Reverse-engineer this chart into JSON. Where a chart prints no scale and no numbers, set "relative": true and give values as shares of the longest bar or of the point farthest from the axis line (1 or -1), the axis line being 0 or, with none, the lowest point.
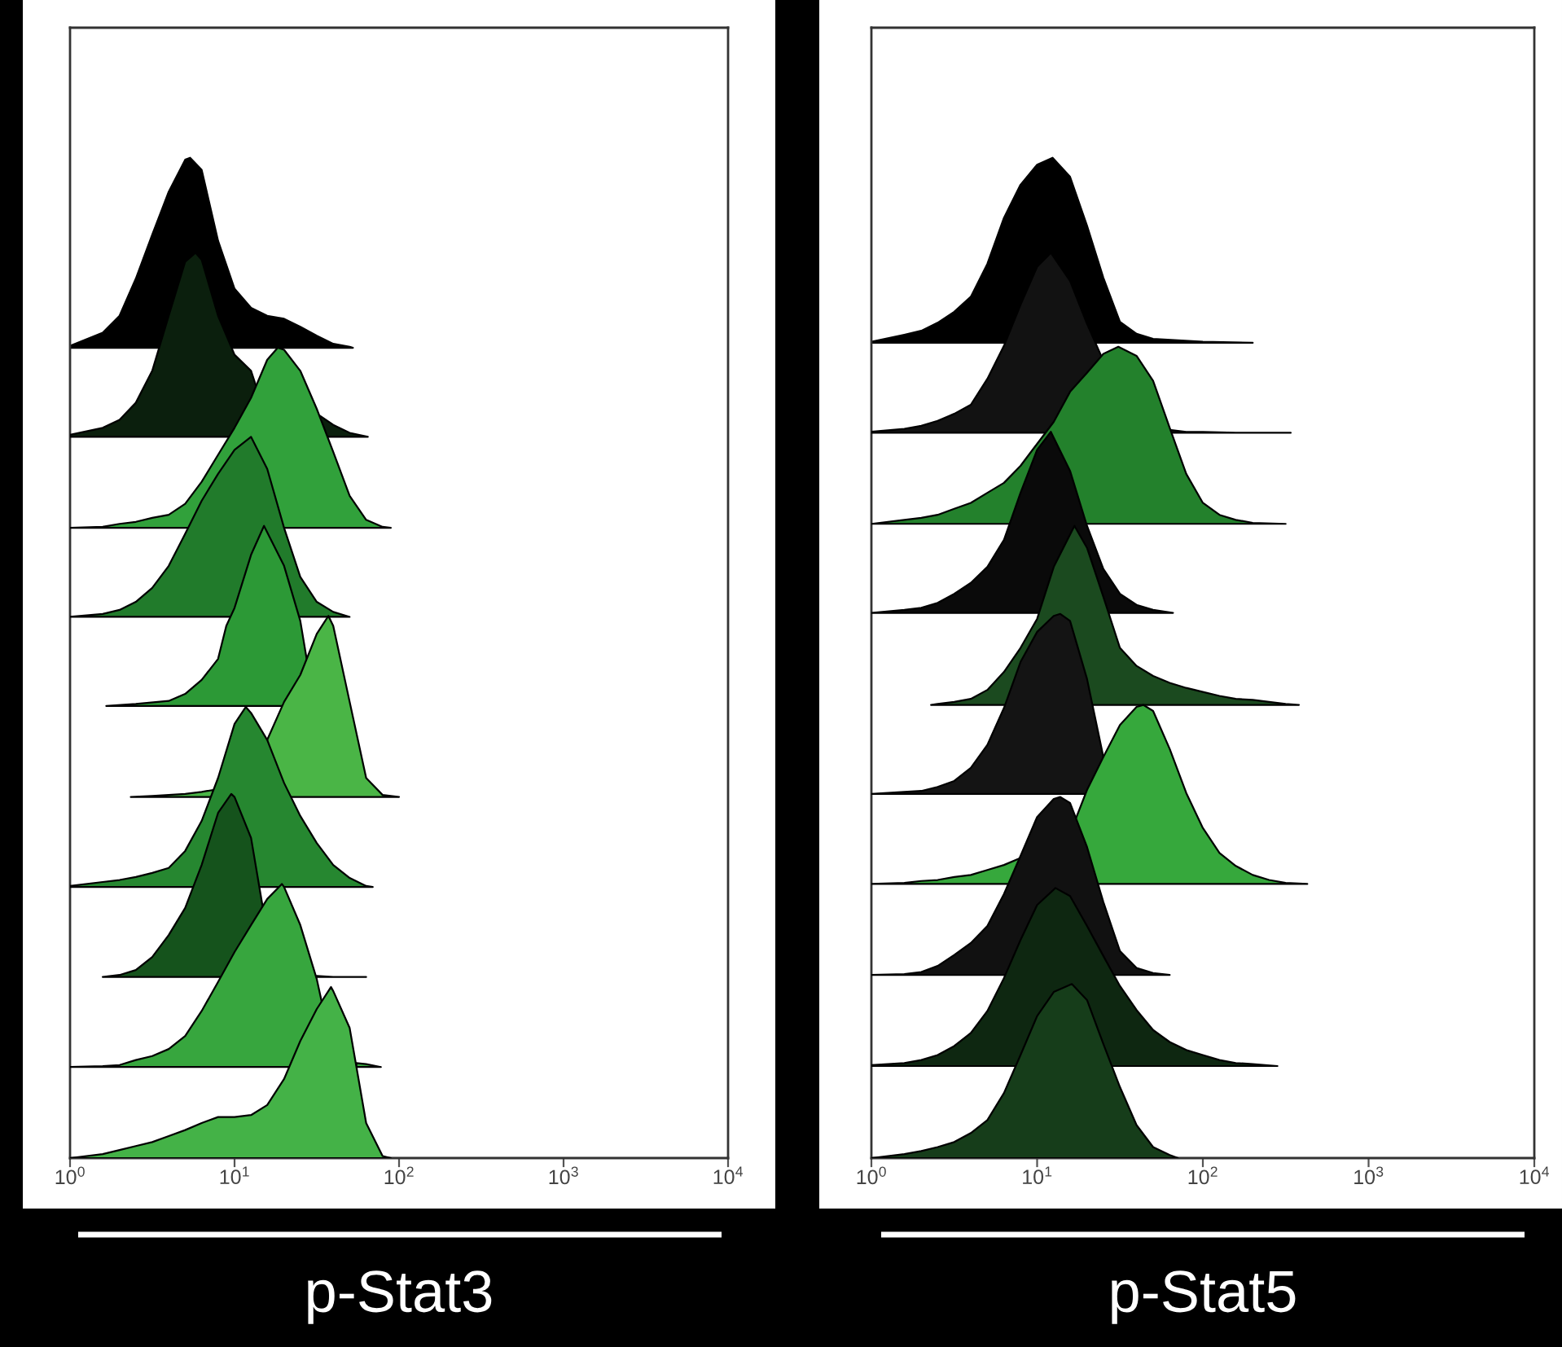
{
  "chart_data": [
    {
      "type": "area",
      "relative": true,
      "log": "x",
      "xlim": [
        1,
        10000
      ],
      "xticks": [
        {
          "value": 1,
          "label": "10$^{0}$"
        },
        {
          "value": 10,
          "label": "10$^{1}$"
        },
        {
          "value": 100,
          "label": "10$^{2}$"
        },
        {
          "value": 1000,
          "label": "10$^{3}$"
        },
        {
          "value": 10000,
          "label": "10$^{4}$"
        }
      ],
      "tick_labels": "x",
      "xlabel": "p-Stat3",
      "series": [
        {
          "color": "#000000",
          "x": [
            1,
            1.58,
            2,
            2.51,
            3.16,
            3.98,
            5.01,
            5.37,
            6.31,
            7.94,
            10,
            12.6,
            15.8,
            20,
            25.1,
            31.6,
            39.8,
            50.1,
            52.5
          ],
          "values": [
            0.812,
            0.825,
            0.842,
            0.879,
            0.923,
            0.966,
            0.998,
            1.0,
            0.988,
            0.917,
            0.869,
            0.85,
            0.842,
            0.839,
            0.831,
            0.822,
            0.814,
            0.811,
            0.81
          ]
        },
        {
          "color": "#0b1f0d",
          "x": [
            1,
            1.58,
            2,
            2.51,
            3.16,
            3.98,
            5.01,
            5.79,
            6.31,
            7.94,
            10,
            12.6,
            13.5,
            15.8,
            20,
            25.1,
            31.6,
            33.1,
            39.8,
            50.1,
            64.6
          ],
          "values": [
            0.723,
            0.73,
            0.738,
            0.755,
            0.787,
            0.842,
            0.896,
            0.905,
            0.898,
            0.842,
            0.803,
            0.787,
            0.772,
            null,
            null,
            null,
            null,
            0.742,
            0.733,
            0.725,
            0.721
          ]
        },
        {
          "color": "#31a13b",
          "x": [
            1,
            1.58,
            2,
            2.51,
            3.16,
            3.98,
            5.01,
            6.31,
            7.94,
            10,
            12.6,
            15.8,
            18.3,
            20,
            25.1,
            31.6,
            39.8,
            50.1,
            63.1,
            79.4,
            89.1
          ],
          "values": [
            0.63,
            0.631,
            0.634,
            0.636,
            0.64,
            0.643,
            0.654,
            0.676,
            0.703,
            0.73,
            0.76,
            0.798,
            0.81,
            0.808,
            0.787,
            0.749,
            0.706,
            0.662,
            0.638,
            0.631,
            0.63
          ]
        },
        {
          "color": "#217b2b",
          "x": [
            1,
            1.58,
            2,
            2.51,
            3.16,
            3.98,
            5.01,
            6.31,
            7.94,
            10,
            12.6,
            15.8,
            20,
            25.1,
            31.6,
            39.8,
            50.1
          ],
          "values": [
            0.541,
            0.544,
            0.548,
            0.556,
            0.57,
            0.592,
            0.624,
            0.657,
            0.684,
            0.708,
            0.721,
            0.689,
            0.63,
            0.581,
            0.556,
            0.546,
            0.541
          ]
        },
        {
          "color": "#2c9936",
          "x": [
            1.66,
            2.51,
            3.98,
            5.01,
            6.31,
            7.94,
            8.91,
            10,
            12.6,
            15.1,
            20,
            25.1,
            27.7
          ],
          "values": [
            0.452,
            0.454,
            0.457,
            0.464,
            0.478,
            0.499,
            0.532,
            0.55,
            0.603,
            0.632,
            0.592,
            0.537,
            0.495
          ]
        },
        {
          "color": "#4ab546",
          "x": [
            2.34,
            3.16,
            5.01,
            6.31,
            7.41,
            7.94,
            10,
            12.6,
            15.8,
            20,
            25.1,
            31.6,
            37.2,
            39.8,
            50.1,
            63.1,
            79.4,
            100
          ],
          "values": [
            0.361,
            0.362,
            0.364,
            0.366,
            0.368,
            null,
            null,
            null,
            0.418,
            0.456,
            0.483,
            0.524,
            0.542,
            0.532,
            0.456,
            0.38,
            0.363,
            0.361
          ]
        },
        {
          "color": "#268730",
          "x": [
            1,
            1.58,
            2,
            2.51,
            3.16,
            3.98,
            5.01,
            6.31,
            7.94,
            10,
            11.7,
            12.6,
            15.8,
            20,
            25.1,
            31.6,
            39.8,
            50.1,
            63.1,
            69.2
          ],
          "values": [
            0.272,
            0.276,
            0.278,
            0.281,
            0.285,
            0.29,
            0.307,
            0.337,
            0.38,
            0.434,
            0.451,
            0.445,
            0.418,
            0.375,
            0.342,
            0.315,
            0.293,
            0.28,
            0.272,
            0.271
          ]
        },
        {
          "color": "#15531c",
          "x": [
            1.58,
            2,
            2.51,
            3.16,
            3.98,
            5.01,
            6.31,
            7.94,
            9.55,
            10,
            12.6,
            14.8,
            15.8,
            20,
            25.1,
            31.6,
            39.8,
            63.1
          ],
          "values": [
            0.181,
            0.183,
            0.188,
            0.201,
            0.223,
            0.25,
            0.293,
            0.345,
            0.364,
            0.361,
            0.32,
            0.252,
            null,
            null,
            null,
            0.182,
            0.181,
            0.181
          ]
        },
        {
          "color": "#37a63e",
          "x": [
            1,
            1.58,
            2,
            2.51,
            3.16,
            3.98,
            5.01,
            6.31,
            7.94,
            10,
            12.6,
            15.8,
            19.4,
            20,
            25.1,
            31.6,
            33.8,
            39.8,
            50.1,
            55.0,
            63.1,
            77.6
          ],
          "values": [
            0.091,
            0.092,
            0.093,
            0.098,
            0.102,
            0.109,
            0.122,
            0.147,
            0.176,
            0.206,
            0.233,
            0.259,
            0.274,
            0.271,
            0.233,
            0.179,
            0.157,
            null,
            null,
            0.095,
            0.094,
            0.091
          ]
        },
        {
          "color": "#44b247",
          "x": [
            1,
            1.58,
            2,
            2.51,
            3.16,
            3.98,
            5.01,
            6.31,
            7.94,
            10,
            12.6,
            15.8,
            20,
            25.1,
            31.6,
            38.6,
            39.8,
            50.1,
            63.1,
            79.4,
            89.1
          ],
          "values": [
            0,
            0.004,
            0.008,
            0.012,
            0.016,
            0.022,
            0.028,
            0.035,
            0.041,
            0.041,
            0.043,
            0.053,
            0.079,
            0.117,
            0.149,
            0.171,
            0.167,
            0.13,
            0.035,
            0.002,
            0
          ]
        }
      ]
    },
    {
      "type": "area",
      "relative": true,
      "log": "x",
      "xlim": [
        1,
        10000
      ],
      "xticks": [
        {
          "value": 1,
          "label": "10$^{0}$"
        },
        {
          "value": 10,
          "label": "10$^{1}$"
        },
        {
          "value": 100,
          "label": "10$^{2}$"
        },
        {
          "value": 1000,
          "label": "10$^{3}$"
        },
        {
          "value": 10000,
          "label": "10$^{4}$"
        }
      ],
      "tick_labels": "x",
      "xlabel": "p-Stat5",
      "series": [
        {
          "color": "#000000",
          "x": [
            1,
            1.58,
            2,
            2.51,
            3.16,
            3.98,
            5.01,
            6.31,
            7.94,
            10,
            12.4,
            15.8,
            20,
            25.1,
            31.6,
            39.8,
            50.1,
            100,
            200
          ],
          "values": [
            0.816,
            0.823,
            0.827,
            0.835,
            0.846,
            0.861,
            0.894,
            0.94,
            0.973,
            0.993,
            1.0,
            0.981,
            0.932,
            0.88,
            0.836,
            0.824,
            0.819,
            0.816,
            0.815
          ]
        },
        {
          "color": "#121212",
          "x": [
            1,
            1.58,
            2,
            2.51,
            3.16,
            3.98,
            5.01,
            6.31,
            7.94,
            10,
            12.1,
            15.8,
            20,
            24.5,
            31.6,
            39.8,
            50.1,
            63.1,
            79.4,
            100,
            158,
            339
          ],
          "values": [
            0.726,
            0.729,
            0.732,
            0.737,
            0.744,
            0.753,
            0.779,
            0.812,
            0.853,
            0.891,
            0.905,
            0.877,
            0.834,
            0.801,
            null,
            null,
            null,
            0.728,
            0.726,
            0.726,
            0.725,
            0.725
          ]
        },
        {
          "color": "#23812c",
          "x": [
            1,
            1.58,
            2,
            2.51,
            3.16,
            3.98,
            5.01,
            6.31,
            7.94,
            10,
            12.6,
            15.8,
            20,
            25.1,
            30.9,
            39.8,
            50.1,
            63.1,
            79.4,
            100,
            126,
            158,
            200,
            316
          ],
          "values": [
            0.634,
            0.638,
            0.64,
            0.643,
            0.649,
            0.655,
            0.665,
            0.675,
            0.692,
            0.714,
            0.736,
            0.766,
            0.785,
            0.804,
            0.811,
            0.802,
            0.777,
            0.73,
            0.684,
            0.655,
            0.643,
            0.638,
            0.635,
            0.634
          ]
        },
        {
          "color": "#0a0a0a",
          "x": [
            1,
            1.58,
            2,
            2.51,
            3.16,
            3.98,
            5.01,
            6.31,
            7.94,
            10,
            12.1,
            15.8,
            20,
            25.1,
            31.6,
            39.8,
            50.1,
            66.1
          ],
          "values": [
            0.545,
            0.548,
            0.55,
            0.555,
            0.564,
            0.575,
            0.591,
            0.618,
            0.665,
            0.708,
            0.726,
            0.687,
            0.632,
            0.589,
            0.564,
            0.553,
            0.548,
            0.545
          ]
        },
        {
          "color": "#1b4a1f",
          "x": [
            2.29,
            2.51,
            3.16,
            3.98,
            5.01,
            6.31,
            7.94,
            10,
            12.6,
            16.8,
            20,
            25.1,
            31.6,
            39.8,
            50.1,
            63.1,
            79.4,
            100,
            126,
            158,
            200,
            251,
            316,
            380
          ],
          "values": [
            0.453,
            0.454,
            0.456,
            0.459,
            0.468,
            0.486,
            0.51,
            0.539,
            0.591,
            0.632,
            0.61,
            0.561,
            0.51,
            0.492,
            0.482,
            0.475,
            0.47,
            0.466,
            0.462,
            0.459,
            0.458,
            0.456,
            0.454,
            0.453
          ]
        },
        {
          "color": "#141414",
          "x": [
            1,
            1.58,
            2,
            2.51,
            3.16,
            3.98,
            5.01,
            6.31,
            7.94,
            10,
            12.6,
            13.8,
            15.8,
            20,
            25.1
          ],
          "values": [
            0.364,
            0.366,
            0.367,
            0.371,
            0.377,
            0.39,
            0.413,
            0.45,
            0.496,
            0.526,
            0.542,
            0.544,
            0.537,
            0.479,
            0.401
          ]
        },
        {
          "color": "#36a83c",
          "x": [
            1,
            1.58,
            2,
            2.51,
            3.16,
            3.98,
            5.01,
            6.31,
            7.94,
            10,
            12.6,
            15.8,
            17.0,
            20,
            25.1,
            31.6,
            39.8,
            43.7,
            50.1,
            63.1,
            79.4,
            100,
            126,
            158,
            200,
            251,
            316,
            427
          ],
          "values": [
            0.274,
            0.275,
            0.277,
            0.278,
            0.281,
            0.283,
            0.288,
            0.293,
            0.3,
            null,
            null,
            null,
            0.338,
            0.368,
            0.401,
            0.433,
            0.451,
            0.453,
            0.447,
            0.409,
            0.365,
            0.33,
            0.305,
            0.292,
            0.283,
            0.278,
            0.275,
            0.274
          ]
        },
        {
          "color": "#111111",
          "x": [
            1,
            1.58,
            2,
            2.51,
            3.16,
            3.98,
            5.01,
            6.31,
            7.94,
            10,
            12.6,
            13.8,
            15.8,
            20,
            25.1,
            31.6,
            39.8,
            50.1,
            63.1
          ],
          "values": [
            0.183,
            0.184,
            0.186,
            0.192,
            0.203,
            0.215,
            0.232,
            0.264,
            0.302,
            0.341,
            0.359,
            0.361,
            0.355,
            0.311,
            0.256,
            0.207,
            0.19,
            0.185,
            0.183
          ]
        },
        {
          "color": "#0e2711",
          "x": [
            1,
            1.58,
            2,
            2.51,
            3.16,
            3.98,
            5.01,
            6.31,
            7.94,
            10,
            12.9,
            15.8,
            20,
            25.1,
            31.6,
            39.8,
            50.1,
            63.1,
            79.4,
            100,
            126,
            158,
            200,
            282
          ],
          "values": [
            0.093,
            0.095,
            0.098,
            0.103,
            0.112,
            0.125,
            0.147,
            0.18,
            0.218,
            0.253,
            0.27,
            0.262,
            0.232,
            0.202,
            0.172,
            0.148,
            0.128,
            0.116,
            0.108,
            0.103,
            0.098,
            0.095,
            0.094,
            0.092
          ]
        },
        {
          "color": "#163d1a",
          "x": [
            1,
            1.58,
            2,
            2.51,
            3.16,
            3.98,
            5.01,
            6.31,
            7.94,
            10,
            12.6,
            16.2,
            20,
            25.1,
            31.6,
            39.8,
            50.1,
            63.1,
            70.8
          ],
          "values": [
            0,
            0.004,
            0.007,
            0.011,
            0.016,
            0.025,
            0.038,
            0.065,
            0.103,
            0.142,
            0.166,
            0.174,
            0.158,
            0.114,
            0.071,
            0.033,
            0.011,
            0.003,
            0
          ]
        }
      ]
    }
  ]
}
